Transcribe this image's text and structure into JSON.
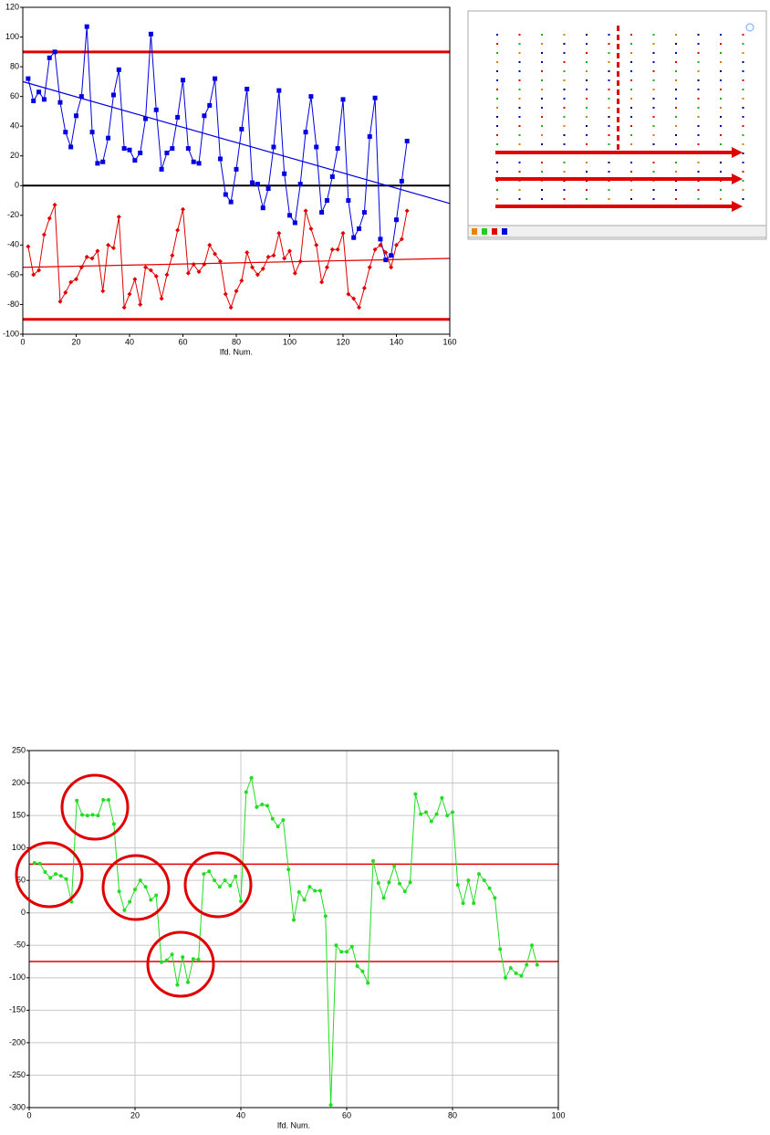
{
  "chart_data": [
    {
      "type": "line",
      "xlabel": "lfd. Num.",
      "xlim": [
        0,
        160
      ],
      "xticks": [
        0,
        20,
        40,
        60,
        80,
        100,
        120,
        140,
        160
      ],
      "ylim": [
        -100,
        120
      ],
      "yticks": [
        -100,
        -80,
        -60,
        -40,
        -20,
        0,
        20,
        40,
        60,
        80,
        100,
        120
      ],
      "grid": false,
      "x": [
        2,
        4,
        6,
        8,
        10,
        12,
        14,
        16,
        18,
        20,
        22,
        24,
        26,
        28,
        30,
        32,
        34,
        36,
        38,
        40,
        42,
        44,
        46,
        48,
        50,
        52,
        54,
        56,
        58,
        60,
        62,
        64,
        66,
        68,
        70,
        72,
        74,
        76,
        78,
        80,
        82,
        84,
        86,
        88,
        90,
        92,
        94,
        96,
        98,
        100,
        102,
        104,
        106,
        108,
        110,
        112,
        114,
        116,
        118,
        120,
        122,
        124,
        126,
        128,
        130,
        132,
        134,
        136,
        138,
        140,
        142,
        144
      ],
      "series": [
        {
          "color": "#0000e0",
          "marker": "square",
          "values": [
            72,
            57,
            63,
            58,
            86,
            90,
            56,
            36,
            26,
            47,
            60,
            107,
            36,
            15,
            16,
            32,
            61,
            78,
            25,
            24,
            17,
            22,
            45,
            102,
            51,
            11,
            22,
            25,
            46,
            71,
            25,
            16,
            15,
            47,
            54,
            72,
            18,
            -6,
            -11,
            11,
            38,
            65,
            2,
            1,
            -15,
            -2,
            26,
            64,
            8,
            -20,
            -25,
            1,
            36,
            60,
            26,
            -18,
            -10,
            6,
            25,
            58,
            -10,
            -35,
            -29,
            -18,
            33,
            59,
            -36,
            -50,
            -47,
            -23,
            3,
            30
          ]
        },
        {
          "color": "#e00000",
          "marker": "diamond",
          "values": [
            -41,
            -60,
            -57,
            -33,
            -22,
            -13,
            -78,
            -72,
            -65,
            -63,
            -55,
            -48,
            -49,
            -44,
            -71,
            -40,
            -42,
            -21,
            -82,
            -73,
            -63,
            -80,
            -55,
            -57,
            -61,
            -76,
            -60,
            -47,
            -30,
            -16,
            -59,
            -53,
            -58,
            -53,
            -40,
            -46,
            -51,
            -73,
            -82,
            -71,
            -64,
            -45,
            -55,
            -60,
            -56,
            -48,
            -47,
            -32,
            -49,
            -44,
            -59,
            -51,
            -17,
            -29,
            -40,
            -65,
            -55,
            -43,
            -43,
            -32,
            -73,
            -76,
            -82,
            -69,
            -55,
            -43,
            -40,
            -45,
            -55,
            -40,
            -36,
            -17
          ]
        }
      ],
      "trend_lines": [
        {
          "color": "#0000e0",
          "x": [
            0,
            160
          ],
          "values": [
            70,
            -12
          ]
        },
        {
          "color": "#e00000",
          "x": [
            0,
            160
          ],
          "values": [
            -55,
            -49
          ]
        }
      ],
      "hlines": [
        {
          "value": 90,
          "color": "#e00000"
        },
        {
          "value": -90,
          "color": "#e00000"
        },
        {
          "value": 0,
          "color": "#000000"
        }
      ]
    },
    {
      "type": "line",
      "xlabel": "lfd. Num.",
      "xlim": [
        0,
        100
      ],
      "xticks": [
        0,
        20,
        40,
        60,
        80,
        100
      ],
      "ylim": [
        -300,
        250
      ],
      "yticks": [
        -300,
        -250,
        -200,
        -150,
        -100,
        -50,
        0,
        50,
        100,
        150,
        200,
        250
      ],
      "grid": true,
      "x": [
        1,
        2,
        3,
        4,
        5,
        6,
        7,
        8,
        9,
        10,
        11,
        12,
        13,
        14,
        15,
        16,
        17,
        18,
        19,
        20,
        21,
        22,
        23,
        24,
        25,
        26,
        27,
        28,
        29,
        30,
        31,
        32,
        33,
        34,
        35,
        36,
        37,
        38,
        39,
        40,
        41,
        42,
        43,
        44,
        45,
        46,
        47,
        48,
        49,
        50,
        51,
        52,
        53,
        54,
        55,
        56,
        57,
        58,
        59,
        60,
        61,
        62,
        63,
        64,
        65,
        66,
        67,
        68,
        69,
        70,
        71,
        72,
        73,
        74,
        75,
        76,
        77,
        78,
        79,
        80,
        81,
        82,
        83,
        84,
        85,
        86,
        87,
        88,
        89,
        90,
        91,
        92,
        93,
        94,
        95,
        96
      ],
      "series": [
        {
          "color": "#22dd22",
          "marker": "circle",
          "values": [
            77,
            76,
            63,
            54,
            60,
            57,
            52,
            17,
            173,
            151,
            150,
            151,
            150,
            174,
            174,
            137,
            33,
            4,
            17,
            36,
            50,
            40,
            20,
            27,
            -76,
            -73,
            -64,
            -111,
            -68,
            -107,
            -71,
            -72,
            60,
            64,
            50,
            40,
            50,
            42,
            56,
            18,
            186,
            208,
            163,
            167,
            165,
            145,
            133,
            143,
            67,
            -11,
            32,
            20,
            40,
            34,
            34,
            -5,
            -296,
            -50,
            -60,
            -60,
            -52,
            -82,
            -90,
            -108,
            80,
            46,
            23,
            47,
            72,
            45,
            33,
            47,
            183,
            152,
            155,
            141,
            152,
            177,
            150,
            155,
            43,
            15,
            50,
            15,
            60,
            50,
            38,
            23,
            -56,
            -100,
            -85,
            -93,
            -97,
            -80,
            -50,
            -80
          ]
        }
      ],
      "hlines": [
        {
          "value": 75,
          "color": "#e00000"
        },
        {
          "value": -75,
          "color": "#e00000"
        }
      ]
    }
  ]
}
